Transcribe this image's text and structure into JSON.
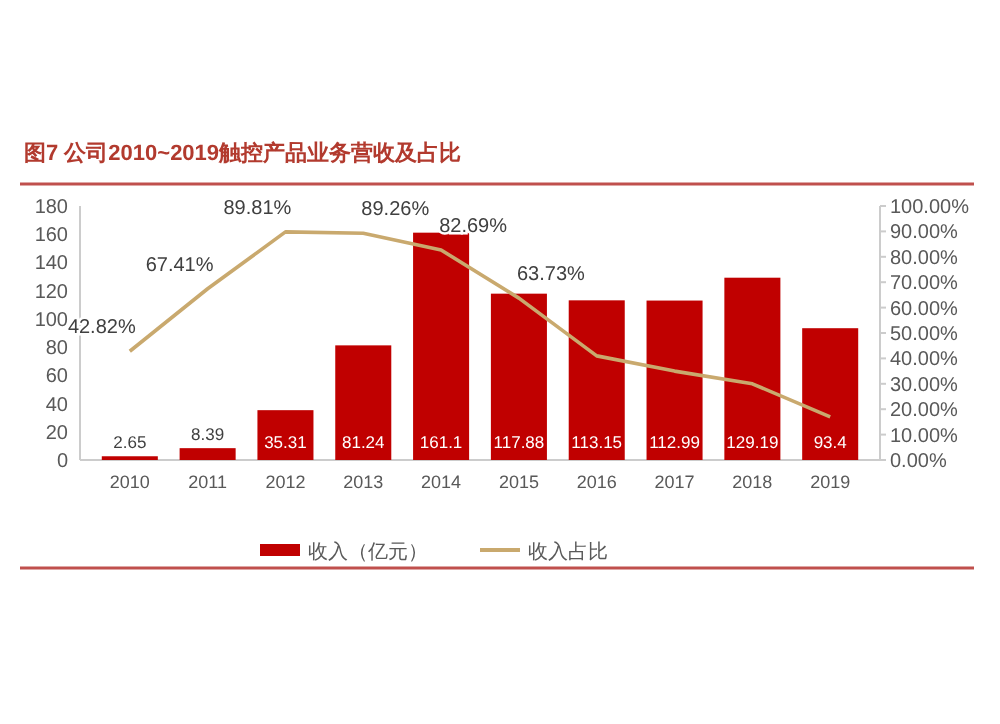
{
  "chart_data": {
    "type": "bar",
    "title": "图7  公司2010~2019触控产品业务营收及占比",
    "categories": [
      "2010",
      "2011",
      "2012",
      "2013",
      "2014",
      "2015",
      "2016",
      "2017",
      "2018",
      "2019"
    ],
    "series": [
      {
        "name": "收入（亿元）",
        "color": "#c00000",
        "values": [
          2.65,
          8.39,
          35.31,
          81.24,
          161.1,
          117.88,
          113.15,
          112.99,
          129.19,
          93.4
        ],
        "value_labels": [
          "2.65",
          "8.39",
          "35.31",
          "81.24",
          "161.1",
          "117.88",
          "113.15",
          "112.99",
          "129.19",
          "93.4"
        ]
      },
      {
        "name": "收入占比",
        "type": "line",
        "axis": "y2",
        "color": "#c9a96e",
        "values": [
          42.82,
          67.41,
          89.81,
          89.26,
          82.69,
          63.73,
          41,
          35,
          30,
          17
        ],
        "value_labels": [
          "42.82%",
          "67.41%",
          "89.81%",
          "89.26%",
          "82.69%",
          "63.73%",
          null,
          null,
          null,
          null
        ]
      }
    ],
    "ylim": [
      0,
      180
    ],
    "yticks": [
      0,
      20,
      40,
      60,
      80,
      100,
      120,
      140,
      160,
      180
    ],
    "y2lim": [
      0,
      100
    ],
    "y2ticks": [
      {
        "value": 0,
        "label": "0.00%"
      },
      {
        "value": 10,
        "label": "10.00%"
      },
      {
        "value": 20,
        "label": "20.00%"
      },
      {
        "value": 30,
        "label": "30.00%"
      },
      {
        "value": 40,
        "label": "40.00%"
      },
      {
        "value": 50,
        "label": "50.00%"
      },
      {
        "value": 60,
        "label": "60.00%"
      },
      {
        "value": 70,
        "label": "70.00%"
      },
      {
        "value": 80,
        "label": "80.00%"
      },
      {
        "value": 90,
        "label": "90.00%"
      },
      {
        "value": 100,
        "label": "100.00%"
      }
    ],
    "legend": "bottom",
    "marker": "none",
    "line_style": "solid"
  }
}
